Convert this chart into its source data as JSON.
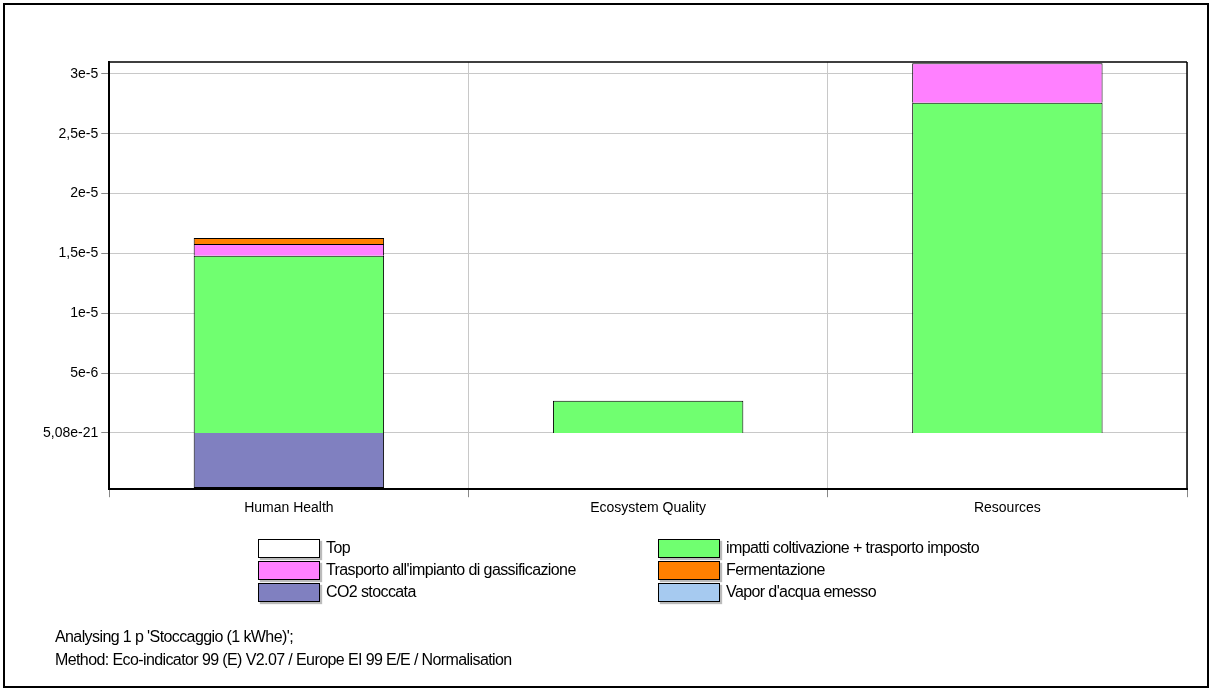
{
  "chart_data": {
    "type": "bar",
    "stacked": true,
    "categories": [
      "Human Health",
      "Ecosystem Quality",
      "Resources"
    ],
    "series": [
      {
        "name": "Top",
        "color": "#ffffff",
        "values": [
          0,
          0,
          0
        ]
      },
      {
        "name": "impatti coltivazione + trasporto imposto",
        "color": "#70ff70",
        "values": [
          1.48e-05,
          2.7e-06,
          2.76e-05
        ]
      },
      {
        "name": "Trasporto all'impianto di gassificazione",
        "color": "#ff80ff",
        "values": [
          1e-06,
          0,
          3.3e-06
        ]
      },
      {
        "name": "Fermentazione",
        "color": "#ff8000",
        "values": [
          5e-07,
          0,
          0
        ]
      },
      {
        "name": "CO2 stoccata",
        "color": "#8080c0",
        "values": [
          -4.6e-06,
          0,
          0
        ]
      },
      {
        "name": "Vapor d'acqua emesso",
        "color": "#a6caf0",
        "values": [
          null,
          null,
          null
        ]
      }
    ],
    "ylim": [
      -4.7e-06,
      3.1e-05
    ],
    "yticks": [
      {
        "value": 5.08e-21,
        "label": "5,08e-21"
      },
      {
        "value": 5e-06,
        "label": "5e-6"
      },
      {
        "value": 1e-05,
        "label": "1e-5"
      },
      {
        "value": 1.5e-05,
        "label": "1,5e-5"
      },
      {
        "value": 2e-05,
        "label": "2e-5"
      },
      {
        "value": 2.5e-05,
        "label": "2,5e-5"
      },
      {
        "value": 3e-05,
        "label": "3e-5"
      }
    ],
    "grid": true,
    "legend": "bottom",
    "annotations": [
      "Analysing 1 p 'Stoccaggio (1 kWhe)';",
      "Method: Eco-indicator 99 (E) V2.07 / Europe EI 99 E/E / Normalisation"
    ]
  }
}
